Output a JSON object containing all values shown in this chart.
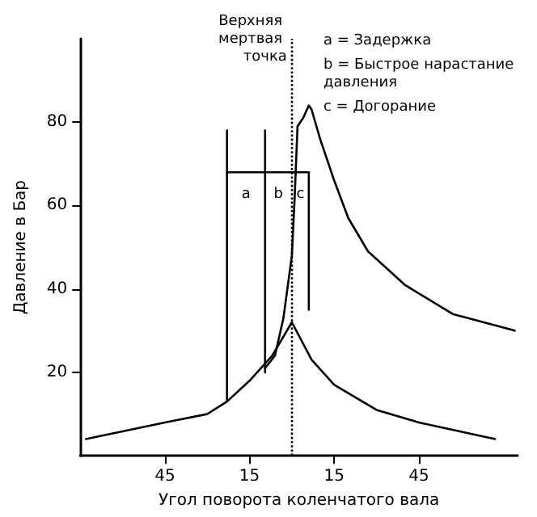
{
  "chart_data": {
    "type": "line",
    "xlabel": "Угол поворота коленчатого вала",
    "ylabel": "Давление в Бар",
    "xlim": [
      -75,
      80
    ],
    "xticks": [
      {
        "value": -45,
        "label": "45"
      },
      {
        "value": -15,
        "label": "15"
      },
      {
        "value": 15,
        "label": "15"
      },
      {
        "value": 45,
        "label": "45"
      }
    ],
    "ylim": [
      0,
      100
    ],
    "yticks": [
      20,
      40,
      60,
      80
    ],
    "grid": false,
    "marker": "none",
    "line_style": "solid",
    "series": [
      {
        "color": "#000000",
        "x": [
          -73,
          -45,
          -30,
          -23,
          -15,
          -7,
          0,
          7,
          15,
          30,
          45,
          72
        ],
        "values": [
          4,
          8,
          10,
          13,
          18,
          24,
          32,
          23,
          17,
          11,
          8,
          4
        ]
      },
      {
        "color": "#000000",
        "x": [
          -9.5,
          -6,
          -3,
          0,
          1,
          2,
          4,
          6,
          7,
          10,
          15,
          20,
          27,
          40,
          57,
          79
        ],
        "values": [
          21,
          24,
          33,
          48,
          62,
          79,
          81,
          84,
          83,
          76,
          66,
          57,
          49,
          41,
          34,
          30
        ]
      },
      {
        "color": "#000000",
        "x": [
          -23,
          -23
        ],
        "values": [
          13,
          78
        ]
      },
      {
        "color": "#000000",
        "x": [
          -9.5,
          -9.5
        ],
        "values": [
          20,
          78
        ]
      },
      {
        "color": "#000000",
        "x": [
          6,
          6
        ],
        "values": [
          35,
          68
        ]
      },
      {
        "color": "#000000",
        "x": [
          -23,
          6
        ],
        "values": [
          68,
          68
        ]
      }
    ],
    "ref_lines": [
      {
        "axis": "x",
        "value": 0,
        "label": "Верхняя мертвая точка",
        "line_style": "dotted",
        "color": "#000000"
      }
    ],
    "annotations": [
      "a",
      "b",
      "c",
      "a = Задержка",
      "b = Быстрое нарастание давления",
      "c = Догорание"
    ]
  }
}
